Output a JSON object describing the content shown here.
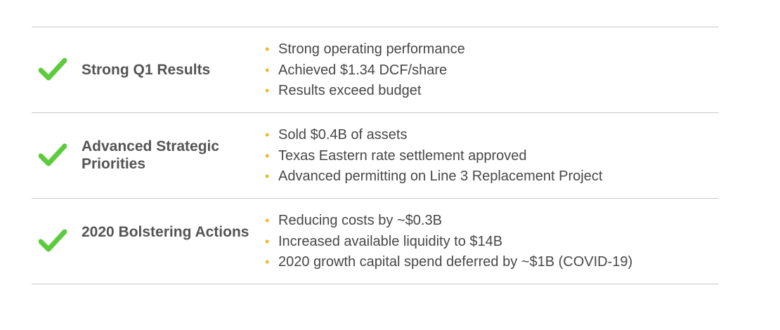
{
  "colors": {
    "check": "#5ccb3c",
    "bullet": "#f2b72a",
    "label_text": "#545454",
    "body_text": "#474747",
    "divider": "#c9c9c9"
  },
  "bullet_glyph": "•",
  "rows": [
    {
      "icon": "checkmark-icon",
      "label": "Strong Q1 Results",
      "bullets": [
        "Strong operating performance",
        "Achieved $1.34 DCF/share",
        "Results exceed budget"
      ]
    },
    {
      "icon": "checkmark-icon",
      "label": "Advanced Strategic Priorities",
      "bullets": [
        "Sold $0.4B of assets",
        "Texas Eastern rate settlement approved",
        "Advanced permitting on Line 3 Replacement Project"
      ]
    },
    {
      "icon": "checkmark-icon",
      "label": "2020 Bolstering Actions",
      "bullets": [
        "Reducing costs by ~$0.3B",
        "Increased available liquidity to $14B",
        "2020 growth capital spend deferred by ~$1B (COVID-19)"
      ]
    }
  ]
}
